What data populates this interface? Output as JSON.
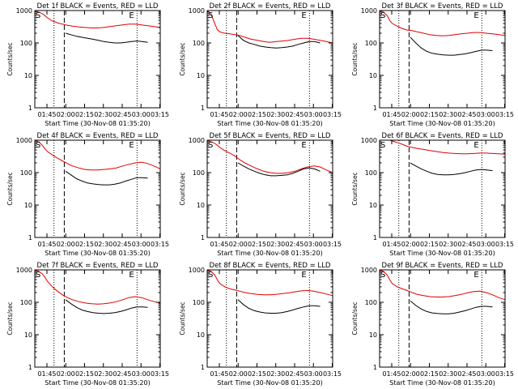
{
  "colors": {
    "events": "#000000",
    "lld": "#e00000",
    "axis": "#000000",
    "background": "#ffffff"
  },
  "common": {
    "xlabel": "Start Time (30-Nov-08 01:35:20)",
    "ylabel": "Counts/sec",
    "xtick_labels": [
      "01:45",
      "02:00",
      "02:15",
      "02:30",
      "02:45",
      "03:00",
      "03:15"
    ],
    "xtick_minutes": [
      9.67,
      24.67,
      39.67,
      54.67,
      69.67,
      84.67,
      99.67
    ],
    "xlim_minutes": [
      0,
      100
    ],
    "ytick_labels": [
      "1",
      "10",
      "100",
      "1000"
    ],
    "ylim": [
      1,
      1000
    ],
    "yscale": "log",
    "marker_S": "S",
    "marker_E": "E",
    "dotted_lines_minutes": [
      15.3,
      81.5
    ],
    "dashed_line_minutes": 23.5
  },
  "chart_data": [
    {
      "type": "line",
      "title": "Det 1f BLACK = Events, RED = LLD",
      "x_minutes": [
        0,
        3,
        6,
        8,
        10,
        14,
        18,
        22,
        26,
        30,
        35,
        40,
        45,
        50,
        55,
        60,
        65,
        70,
        75,
        80,
        85,
        90,
        95,
        100
      ],
      "series": [
        {
          "color": "red",
          "y": [
            1000,
            900,
            800,
            700,
            600,
            480,
            420,
            380,
            350,
            330,
            310,
            300,
            290,
            290,
            300,
            320,
            340,
            360,
            380,
            380,
            360,
            340,
            320,
            300
          ]
        },
        {
          "color": "black",
          "start_minutes": 24.5,
          "y": [
            200,
            180,
            160,
            150,
            140,
            130,
            120,
            110,
            105,
            100,
            100,
            105,
            110,
            115,
            110,
            105
          ]
        }
      ]
    },
    {
      "type": "line",
      "title": "Det 2f BLACK = Events, RED = LLD",
      "x_minutes": [
        0,
        3,
        6,
        8,
        10,
        14,
        18,
        22,
        26,
        30,
        35,
        40,
        45,
        50,
        55,
        60,
        65,
        70,
        75,
        80,
        85,
        90,
        95,
        100
      ],
      "series": [
        {
          "color": "red",
          "y": [
            1000,
            800,
            400,
            260,
            220,
            200,
            190,
            180,
            170,
            150,
            130,
            120,
            110,
            105,
            110,
            115,
            120,
            130,
            140,
            140,
            130,
            120,
            110,
            100
          ]
        },
        {
          "color": "black",
          "start_minutes": 24.5,
          "y": [
            170,
            120,
            100,
            90,
            80,
            75,
            72,
            70,
            72,
            75,
            80,
            90,
            100,
            110,
            110,
            100
          ]
        }
      ]
    },
    {
      "type": "line",
      "title": "Det 3f BLACK = Events, RED = LLD",
      "x_minutes": [
        0,
        3,
        6,
        8,
        10,
        14,
        18,
        22,
        26,
        30,
        35,
        40,
        45,
        50,
        55,
        60,
        65,
        70,
        75,
        80,
        85,
        90,
        95,
        100
      ],
      "series": [
        {
          "color": "red",
          "y": [
            1000,
            900,
            700,
            500,
            400,
            330,
            280,
            250,
            240,
            220,
            200,
            180,
            170,
            165,
            170,
            180,
            190,
            200,
            210,
            210,
            200,
            190,
            180,
            170
          ]
        },
        {
          "color": "black",
          "start_minutes": 24.5,
          "y": [
            150,
            100,
            70,
            55,
            48,
            45,
            43,
            42,
            42,
            44,
            46,
            50,
            55,
            60,
            60,
            58
          ]
        }
      ]
    },
    {
      "type": "line",
      "title": "Det 4f BLACK = Events, RED = LLD",
      "x_minutes": [
        0,
        3,
        6,
        8,
        10,
        14,
        18,
        22,
        26,
        30,
        35,
        40,
        45,
        50,
        55,
        60,
        65,
        70,
        75,
        80,
        85,
        90,
        95,
        100
      ],
      "series": [
        {
          "color": "red",
          "y": [
            1000,
            900,
            700,
            550,
            450,
            350,
            280,
            230,
            190,
            160,
            140,
            125,
            120,
            120,
            125,
            130,
            140,
            160,
            180,
            200,
            210,
            190,
            160,
            130
          ]
        },
        {
          "color": "black",
          "start_minutes": 24.5,
          "y": [
            110,
            85,
            65,
            55,
            48,
            45,
            43,
            42,
            42,
            44,
            48,
            55,
            62,
            70,
            70,
            68
          ]
        }
      ]
    },
    {
      "type": "line",
      "title": "Det 5f BLACK = Events, RED = LLD",
      "x_minutes": [
        0,
        3,
        6,
        8,
        10,
        14,
        18,
        22,
        26,
        30,
        35,
        40,
        45,
        50,
        55,
        60,
        65,
        70,
        75,
        80,
        85,
        90,
        95,
        100
      ],
      "series": [
        {
          "color": "red",
          "y": [
            1000,
            900,
            800,
            700,
            600,
            480,
            400,
            330,
            250,
            200,
            160,
            130,
            110,
            100,
            95,
            95,
            100,
            110,
            130,
            150,
            160,
            150,
            120,
            100
          ]
        },
        {
          "color": "black",
          "start_minutes": 24.5,
          "y": [
            200,
            160,
            130,
            110,
            95,
            85,
            80,
            80,
            82,
            85,
            95,
            110,
            130,
            140,
            130,
            110
          ]
        }
      ]
    },
    {
      "type": "line",
      "title": "Det 6f BLACK = Events, RED = LLD",
      "x_minutes": [
        0,
        3,
        6,
        8,
        10,
        14,
        18,
        22,
        26,
        30,
        35,
        40,
        45,
        50,
        55,
        60,
        65,
        70,
        75,
        80,
        85,
        90,
        95,
        100
      ],
      "series": [
        {
          "color": "red",
          "y": [
            1000,
            1000,
            1000,
            1000,
            950,
            850,
            750,
            650,
            600,
            560,
            520,
            480,
            450,
            420,
            400,
            390,
            380,
            380,
            390,
            400,
            400,
            390,
            380,
            370
          ]
        },
        {
          "color": "black",
          "start_minutes": 24.5,
          "y": [
            200,
            160,
            130,
            110,
            95,
            88,
            85,
            85,
            88,
            92,
            100,
            110,
            120,
            125,
            120,
            115
          ]
        }
      ]
    },
    {
      "type": "line",
      "title": "Det 7f BLACK = Events, RED = LLD",
      "x_minutes": [
        0,
        3,
        6,
        8,
        10,
        14,
        18,
        22,
        26,
        30,
        35,
        40,
        45,
        50,
        55,
        60,
        65,
        70,
        75,
        80,
        85,
        90,
        95,
        100
      ],
      "series": [
        {
          "color": "red",
          "y": [
            1000,
            900,
            750,
            600,
            450,
            300,
            220,
            170,
            140,
            120,
            105,
            95,
            90,
            88,
            90,
            95,
            105,
            120,
            140,
            150,
            140,
            120,
            105,
            95
          ]
        },
        {
          "color": "black",
          "start_minutes": 24.5,
          "y": [
            120,
            90,
            70,
            58,
            52,
            48,
            46,
            45,
            46,
            48,
            52,
            58,
            66,
            72,
            72,
            70
          ]
        }
      ]
    },
    {
      "type": "line",
      "title": "Det 8f BLACK = Events, RED = LLD",
      "x_minutes": [
        0,
        3,
        6,
        8,
        10,
        14,
        18,
        22,
        26,
        30,
        35,
        40,
        45,
        50,
        55,
        60,
        65,
        70,
        75,
        80,
        85,
        90,
        95,
        100
      ],
      "series": [
        {
          "color": "red",
          "y": [
            1000,
            900,
            700,
            500,
            380,
            300,
            260,
            240,
            220,
            200,
            185,
            175,
            170,
            170,
            175,
            185,
            195,
            210,
            225,
            230,
            220,
            200,
            180,
            160
          ]
        },
        {
          "color": "black",
          "start_minutes": 24.5,
          "y": [
            120,
            85,
            65,
            55,
            50,
            47,
            46,
            46,
            48,
            52,
            58,
            65,
            72,
            78,
            78,
            75
          ]
        }
      ]
    },
    {
      "type": "line",
      "title": "Det 9f BLACK = Events, RED = LLD",
      "x_minutes": [
        0,
        3,
        6,
        8,
        10,
        14,
        18,
        22,
        26,
        30,
        35,
        40,
        45,
        50,
        55,
        60,
        65,
        70,
        75,
        80,
        85,
        90,
        95,
        100
      ],
      "series": [
        {
          "color": "red",
          "y": [
            1000,
            900,
            700,
            500,
            380,
            300,
            260,
            230,
            200,
            175,
            160,
            150,
            145,
            145,
            150,
            160,
            175,
            195,
            215,
            220,
            200,
            170,
            140,
            120
          ]
        },
        {
          "color": "black",
          "start_minutes": 24.5,
          "y": [
            110,
            80,
            62,
            52,
            47,
            45,
            44,
            44,
            46,
            50,
            55,
            62,
            70,
            75,
            75,
            72
          ]
        }
      ]
    }
  ]
}
